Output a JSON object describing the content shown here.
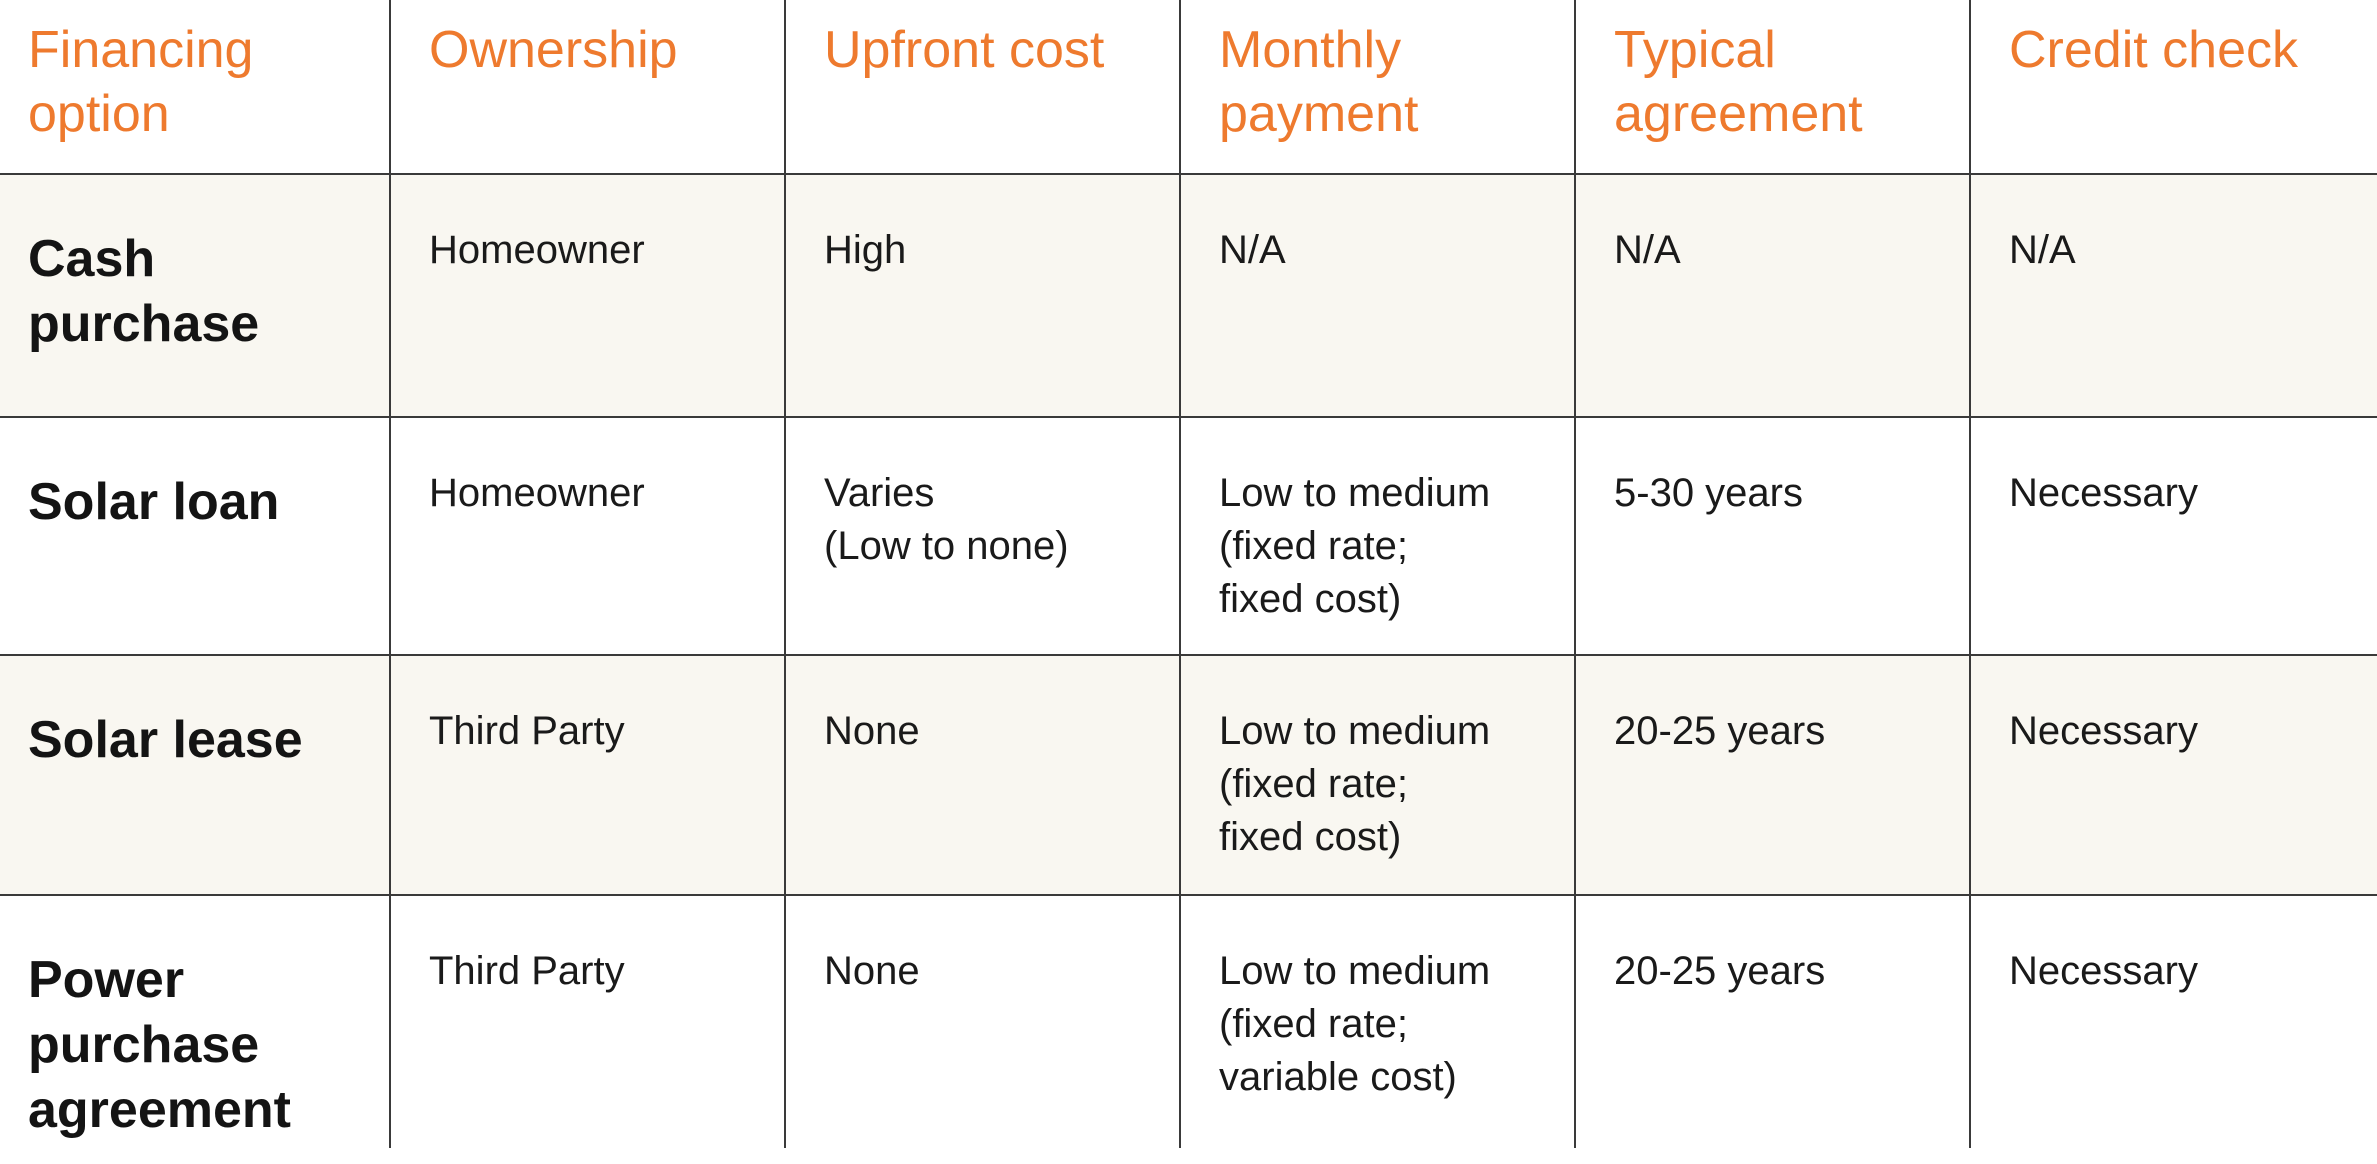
{
  "headers": [
    [
      "Financing",
      "option"
    ],
    [
      "Ownership"
    ],
    [
      "Upfront cost"
    ],
    [
      "Monthly",
      "payment"
    ],
    [
      "Typical",
      "agreement"
    ],
    [
      "Credit check"
    ]
  ],
  "rows": [
    {
      "option": [
        "Cash",
        "purchase"
      ],
      "ownership": [
        "Homeowner"
      ],
      "upfront_cost": [
        "High"
      ],
      "monthly_payment": [
        "N/A"
      ],
      "typical_agreement": [
        "N/A"
      ],
      "credit_check": [
        "N/A"
      ]
    },
    {
      "option": [
        "Solar loan"
      ],
      "ownership": [
        "Homeowner"
      ],
      "upfront_cost": [
        "Varies",
        "(Low to none)"
      ],
      "monthly_payment": [
        "Low to medium",
        "(fixed rate;",
        "fixed cost)"
      ],
      "typical_agreement": [
        "5-30 years"
      ],
      "credit_check": [
        "Necessary"
      ]
    },
    {
      "option": [
        "Solar lease"
      ],
      "ownership": [
        "Third Party"
      ],
      "upfront_cost": [
        "None"
      ],
      "monthly_payment": [
        "Low to medium",
        "(fixed rate;",
        "fixed cost)"
      ],
      "typical_agreement": [
        "20-25 years"
      ],
      "credit_check": [
        "Necessary"
      ]
    },
    {
      "option": [
        "Power",
        "purchase",
        "agreement"
      ],
      "ownership": [
        "Third Party"
      ],
      "upfront_cost": [
        "None"
      ],
      "monthly_payment": [
        "Low to medium",
        "(fixed rate;",
        "variable cost)"
      ],
      "typical_agreement": [
        "20-25 years"
      ],
      "credit_check": [
        "Necessary"
      ]
    }
  ],
  "colors": {
    "header_text": "#ee7a2e",
    "body_text": "#1a1a1a",
    "shaded_row": "#f9f7f1",
    "grid_line": "#3a3a3a"
  }
}
